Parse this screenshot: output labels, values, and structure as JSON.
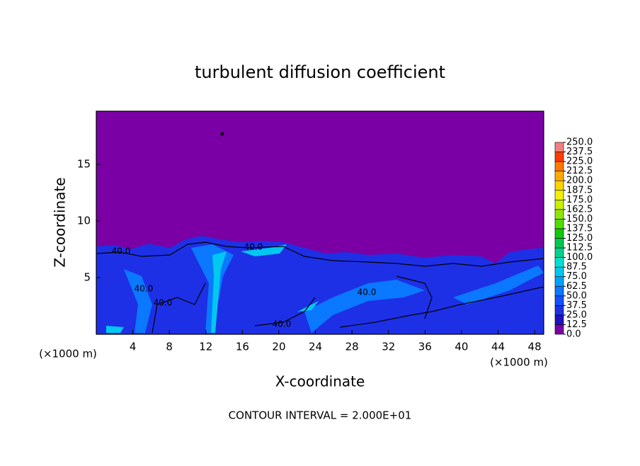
{
  "chart_data": {
    "type": "contour",
    "title": "turbulent diffusion coefficient",
    "x_label": "X-coordinate",
    "y_label": "Z-coordinate",
    "x_unit": "(×1000 m)",
    "xlim": [
      0,
      49
    ],
    "xticks": [
      4,
      8,
      12,
      16,
      20,
      24,
      28,
      32,
      36,
      40,
      44,
      48
    ],
    "ylim": [
      0,
      19.7
    ],
    "yticks": [
      5,
      10,
      15
    ],
    "background_color": "#7a00a6",
    "contour_interval": "CONTOUR INTERVAL = 2.000E+01",
    "contour_labels": [
      "40.0",
      "40.0",
      "40.0",
      "40.0",
      "40.0",
      "40.0"
    ],
    "colorbar": {
      "levels": [
        {
          "value": 0,
          "label": "0.0"
        },
        {
          "value": 12.5,
          "label": "12.5"
        },
        {
          "value": 25,
          "label": "25.0"
        },
        {
          "value": 37.5,
          "label": "37.5"
        },
        {
          "value": 50,
          "label": "50.0"
        },
        {
          "value": 62.5,
          "label": "62.5"
        },
        {
          "value": 75,
          "label": "75.0"
        },
        {
          "value": 87.5,
          "label": "87.5"
        },
        {
          "value": 100,
          "label": "100.0"
        },
        {
          "value": 112.5,
          "label": "112.5"
        },
        {
          "value": 125,
          "label": "125.0"
        },
        {
          "value": 137.5,
          "label": "137.5"
        },
        {
          "value": 150,
          "label": "150.0"
        },
        {
          "value": 162.5,
          "label": "162.5"
        },
        {
          "value": 175,
          "label": "175.0"
        },
        {
          "value": 187.5,
          "label": "187.5"
        },
        {
          "value": 200,
          "label": "200.0"
        },
        {
          "value": 212.5,
          "label": "212.5"
        },
        {
          "value": 225,
          "label": "225.0"
        },
        {
          "value": 237.5,
          "label": "237.5"
        },
        {
          "value": 250,
          "label": "250.0"
        }
      ],
      "colors": [
        "#7a00a6",
        "#2010c0",
        "#1e30e6",
        "#1450ff",
        "#0a78ff",
        "#00a0ff",
        "#00c8f0",
        "#00e0d0",
        "#00d28c",
        "#00c850",
        "#10c810",
        "#50dc00",
        "#90e600",
        "#c8f000",
        "#f0f000",
        "#ffd200",
        "#ffaa00",
        "#ff7800",
        "#ff3c00",
        "#f08080"
      ]
    }
  }
}
